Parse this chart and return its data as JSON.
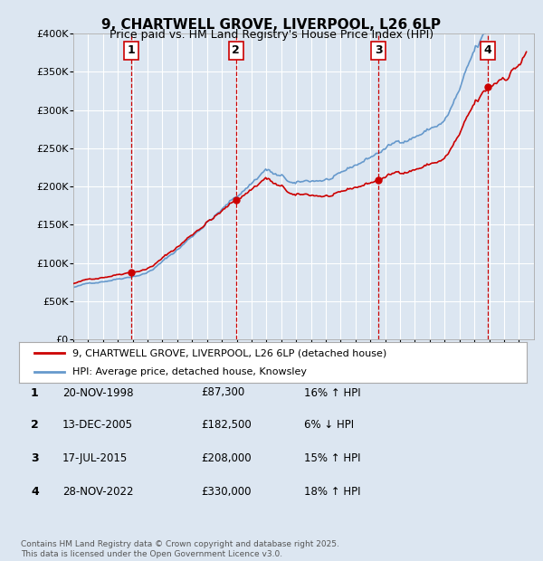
{
  "title": "9, CHARTWELL GROVE, LIVERPOOL, L26 6LP",
  "subtitle": "Price paid vs. HM Land Registry's House Price Index (HPI)",
  "background_color": "#dce6f1",
  "yticks": [
    0,
    50000,
    100000,
    150000,
    200000,
    250000,
    300000,
    350000,
    400000
  ],
  "ytick_labels": [
    "£0",
    "£50K",
    "£100K",
    "£150K",
    "£200K",
    "£250K",
    "£300K",
    "£350K",
    "£400K"
  ],
  "xmin": 1995,
  "xmax": 2026,
  "ymin": 0,
  "ymax": 400000,
  "sale_dates": [
    1998.89,
    2005.95,
    2015.54,
    2022.91
  ],
  "sale_prices": [
    87300,
    182500,
    208000,
    330000
  ],
  "sale_labels": [
    "1",
    "2",
    "3",
    "4"
  ],
  "legend_line1": "9, CHARTWELL GROVE, LIVERPOOL, L26 6LP (detached house)",
  "legend_line2": "HPI: Average price, detached house, Knowsley",
  "table_rows": [
    [
      "1",
      "20-NOV-1998",
      "£87,300",
      "16% ↑ HPI"
    ],
    [
      "2",
      "13-DEC-2005",
      "£182,500",
      "6% ↓ HPI"
    ],
    [
      "3",
      "17-JUL-2015",
      "£208,000",
      "15% ↑ HPI"
    ],
    [
      "4",
      "28-NOV-2022",
      "£330,000",
      "18% ↑ HPI"
    ]
  ],
  "footer": "Contains HM Land Registry data © Crown copyright and database right 2025.\nThis data is licensed under the Open Government Licence v3.0.",
  "red_line_color": "#cc0000",
  "blue_line_color": "#6699cc",
  "vline_color": "#cc0000"
}
